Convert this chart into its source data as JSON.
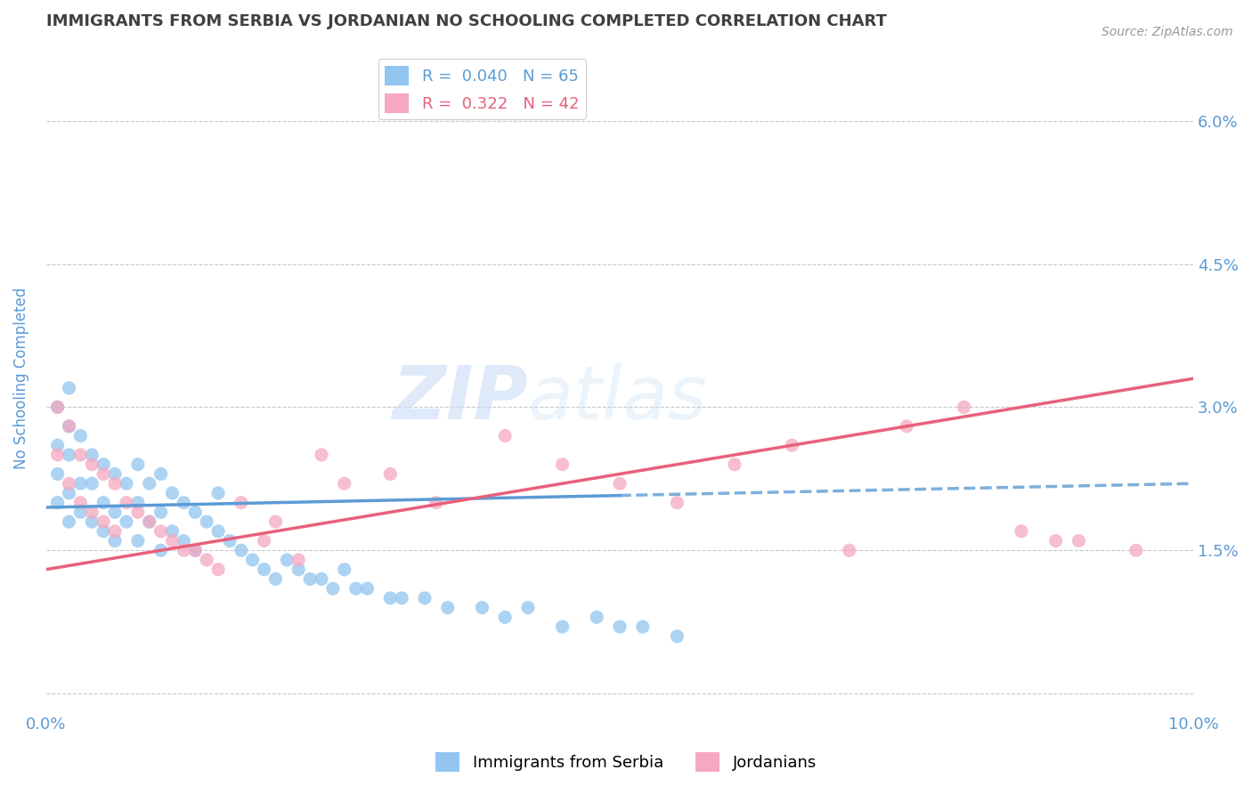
{
  "title": "IMMIGRANTS FROM SERBIA VS JORDANIAN NO SCHOOLING COMPLETED CORRELATION CHART",
  "source": "Source: ZipAtlas.com",
  "ylabel": "No Schooling Completed",
  "xlim": [
    0.0,
    0.1
  ],
  "ylim": [
    -0.002,
    0.068
  ],
  "xticks": [
    0.0,
    0.1
  ],
  "xtick_labels": [
    "0.0%",
    "10.0%"
  ],
  "yticks": [
    0.0,
    0.015,
    0.03,
    0.045,
    0.06
  ],
  "ytick_labels": [
    "",
    "1.5%",
    "3.0%",
    "4.5%",
    "6.0%"
  ],
  "serbia_R": 0.04,
  "serbia_N": 65,
  "jordan_R": 0.322,
  "jordan_N": 42,
  "serbia_color": "#92C5F0",
  "jordan_color": "#F5A8C0",
  "serbia_line_color": "#5B9BD5",
  "jordan_line_color": "#E8607A",
  "legend_labels": [
    "Immigrants from Serbia",
    "Jordanians"
  ],
  "watermark_zip": "ZIP",
  "watermark_atlas": "atlas",
  "background_color": "#ffffff",
  "grid_color": "#c8c8d0",
  "title_color": "#404040",
  "axis_label_color": "#5b9bd5",
  "tick_label_color": "#5b9bd5",
  "serbia_line_solid_end": 0.05,
  "serbia_line_start_y": 0.0195,
  "serbia_line_end_y": 0.022,
  "jordan_line_start_y": 0.013,
  "jordan_line_end_y": 0.033,
  "serbia_points_x": [
    0.001,
    0.001,
    0.001,
    0.001,
    0.002,
    0.002,
    0.002,
    0.002,
    0.002,
    0.003,
    0.003,
    0.003,
    0.004,
    0.004,
    0.004,
    0.005,
    0.005,
    0.005,
    0.006,
    0.006,
    0.006,
    0.007,
    0.007,
    0.008,
    0.008,
    0.008,
    0.009,
    0.009,
    0.01,
    0.01,
    0.01,
    0.011,
    0.011,
    0.012,
    0.012,
    0.013,
    0.013,
    0.014,
    0.015,
    0.015,
    0.016,
    0.017,
    0.018,
    0.019,
    0.02,
    0.021,
    0.022,
    0.023,
    0.024,
    0.025,
    0.026,
    0.027,
    0.028,
    0.03,
    0.031,
    0.033,
    0.035,
    0.038,
    0.04,
    0.042,
    0.045,
    0.048,
    0.05,
    0.052,
    0.055
  ],
  "serbia_points_y": [
    0.02,
    0.023,
    0.026,
    0.03,
    0.018,
    0.021,
    0.025,
    0.028,
    0.032,
    0.019,
    0.022,
    0.027,
    0.018,
    0.022,
    0.025,
    0.017,
    0.02,
    0.024,
    0.016,
    0.019,
    0.023,
    0.018,
    0.022,
    0.016,
    0.02,
    0.024,
    0.018,
    0.022,
    0.015,
    0.019,
    0.023,
    0.017,
    0.021,
    0.016,
    0.02,
    0.015,
    0.019,
    0.018,
    0.017,
    0.021,
    0.016,
    0.015,
    0.014,
    0.013,
    0.012,
    0.014,
    0.013,
    0.012,
    0.012,
    0.011,
    0.013,
    0.011,
    0.011,
    0.01,
    0.01,
    0.01,
    0.009,
    0.009,
    0.008,
    0.009,
    0.007,
    0.008,
    0.007,
    0.007,
    0.006
  ],
  "jordan_points_x": [
    0.001,
    0.001,
    0.002,
    0.002,
    0.003,
    0.003,
    0.004,
    0.004,
    0.005,
    0.005,
    0.006,
    0.006,
    0.007,
    0.008,
    0.009,
    0.01,
    0.011,
    0.012,
    0.013,
    0.014,
    0.015,
    0.017,
    0.019,
    0.02,
    0.022,
    0.024,
    0.026,
    0.03,
    0.034,
    0.04,
    0.045,
    0.05,
    0.055,
    0.06,
    0.065,
    0.07,
    0.075,
    0.08,
    0.085,
    0.088,
    0.09,
    0.095
  ],
  "jordan_points_y": [
    0.025,
    0.03,
    0.022,
    0.028,
    0.02,
    0.025,
    0.019,
    0.024,
    0.018,
    0.023,
    0.017,
    0.022,
    0.02,
    0.019,
    0.018,
    0.017,
    0.016,
    0.015,
    0.015,
    0.014,
    0.013,
    0.02,
    0.016,
    0.018,
    0.014,
    0.025,
    0.022,
    0.023,
    0.02,
    0.027,
    0.024,
    0.022,
    0.02,
    0.024,
    0.026,
    0.015,
    0.028,
    0.03,
    0.017,
    0.016,
    0.016,
    0.015
  ]
}
